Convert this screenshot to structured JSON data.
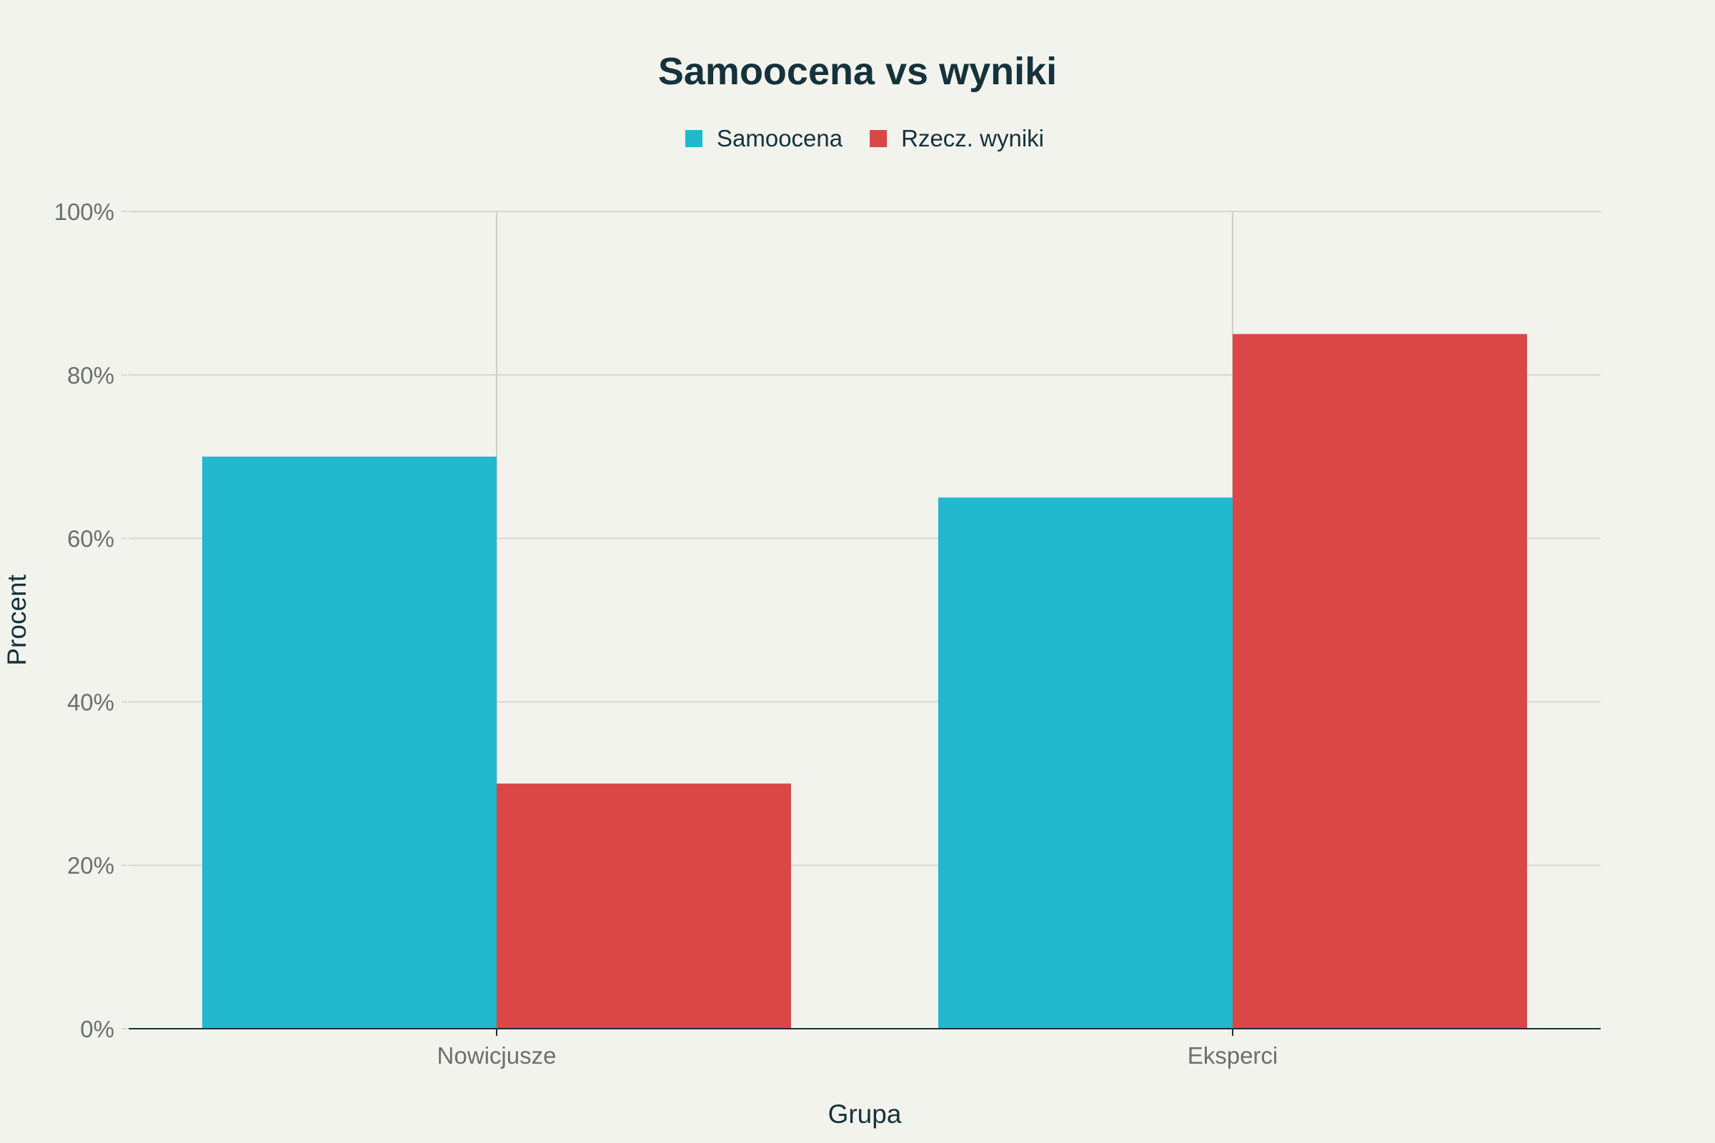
{
  "chart_data": {
    "type": "bar",
    "title": "Samoocena vs wyniki",
    "xlabel": "Grupa",
    "ylabel": "Procent",
    "categories": [
      "Nowicjusze",
      "Eksperci"
    ],
    "series": [
      {
        "name": "Samoocena",
        "values": [
          70,
          65
        ],
        "color": "#22b8cd"
      },
      {
        "name": "Rzecz. wyniki",
        "values": [
          30,
          85
        ],
        "color": "#db4647"
      }
    ],
    "ylim": [
      0,
      100
    ],
    "yticks": [
      0,
      20,
      40,
      60,
      80,
      100
    ],
    "ytick_labels": [
      "0%",
      "20%",
      "40%",
      "60%",
      "80%",
      "100%"
    ],
    "grid": true,
    "legend_position": "top-center"
  }
}
